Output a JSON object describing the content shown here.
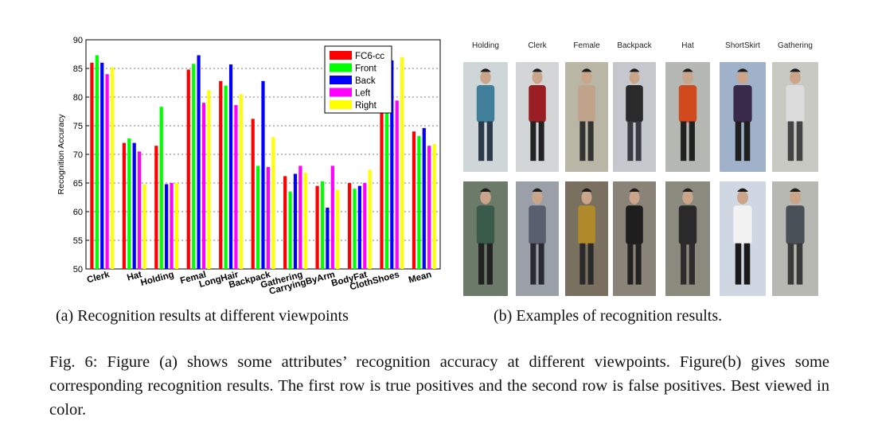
{
  "chart_data": {
    "type": "bar",
    "ylabel": "Recognition Accuracy",
    "ylim": [
      50,
      90
    ],
    "yticks": [
      50,
      55,
      60,
      65,
      70,
      75,
      80,
      85,
      90
    ],
    "categories": [
      "Clerk",
      "Hat",
      "Holding",
      "Femal",
      "LongHair",
      "Backpack",
      "Gathering",
      "CarryingByArm",
      "BodyFat",
      "ClothShoes",
      "Mean"
    ],
    "series": [
      {
        "name": "FC6-cc",
        "color": "#ff0000",
        "values": [
          86.0,
          72.0,
          71.5,
          84.8,
          82.8,
          76.2,
          66.2,
          64.5,
          65.0,
          83.2,
          74.0
        ]
      },
      {
        "name": "Front",
        "color": "#00ff00",
        "values": [
          87.3,
          72.8,
          78.3,
          85.8,
          82.0,
          68.0,
          63.5,
          65.3,
          64.0,
          79.7,
          73.2
        ]
      },
      {
        "name": "Back",
        "color": "#0000ff",
        "values": [
          86.0,
          72.0,
          64.8,
          87.3,
          85.7,
          82.8,
          66.6,
          60.7,
          64.5,
          86.4,
          74.6
        ]
      },
      {
        "name": "Left",
        "color": "#ff00ff",
        "values": [
          84.0,
          70.5,
          65.0,
          79.0,
          78.6,
          67.8,
          68.0,
          68.0,
          65.0,
          79.4,
          71.5
        ]
      },
      {
        "name": "Right",
        "color": "#ffff00",
        "values": [
          85.2,
          64.8,
          65.0,
          81.2,
          80.5,
          73.0,
          66.8,
          63.8,
          67.3,
          87.0,
          71.8
        ]
      }
    ],
    "legend_position": "top-right"
  },
  "panel_b": {
    "labels": [
      "Holding",
      "Clerk",
      "Female",
      "Backpack",
      "Hat",
      "ShortSkirt",
      "Gathering"
    ]
  },
  "captions": {
    "a": "(a)  Recognition results at different viewpoints",
    "b": "(b)  Examples of recognition results.",
    "figure": "Fig. 6: Figure (a) shows some attributes’ recognition accuracy at different viewpoints. Figure(b) gives some corresponding recognition results. The first row is true positives and the second row is false positives. Best viewed in color."
  }
}
